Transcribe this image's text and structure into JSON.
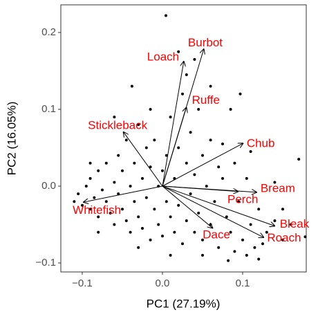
{
  "chart_data": {
    "type": "biplot",
    "x_label": "PC1 (27.19%)",
    "y_label": "PC2 (16.05%)",
    "xlim": [
      -0.1267,
      0.1793
    ],
    "ylim": [
      -0.1117,
      0.236
    ],
    "xticks": [
      {
        "value": -0.1,
        "label": "−0.1"
      },
      {
        "value": 0,
        "label": "0.0"
      },
      0.1
    ],
    "yticks": [
      {
        "value": -0.1,
        "label": "−0.1"
      },
      {
        "value": 0,
        "label": "0.0"
      },
      0.1,
      0.2
    ],
    "grid": false,
    "point_color": "#000000",
    "arrow_color": "#000000",
    "label_color": "#ff0000",
    "points": {
      "x": [
        -0.11,
        -0.105,
        -0.1,
        -0.095,
        -0.09,
        -0.09,
        -0.085,
        -0.08,
        -0.08,
        -0.075,
        -0.07,
        -0.07,
        -0.065,
        -0.06,
        -0.06,
        -0.055,
        -0.055,
        -0.05,
        -0.05,
        -0.045,
        -0.045,
        -0.04,
        -0.04,
        -0.035,
        -0.035,
        -0.03,
        -0.03,
        -0.025,
        -0.025,
        -0.02,
        -0.02,
        -0.015,
        -0.015,
        -0.01,
        -0.01,
        -0.005,
        -0.005,
        0,
        0,
        0.005,
        0.005,
        0.01,
        0.01,
        0.015,
        0.015,
        0.02,
        0.02,
        0.025,
        0.025,
        0.03,
        0.03,
        0.035,
        0.035,
        0.04,
        0.04,
        0.045,
        0.045,
        0.05,
        0.05,
        0.055,
        0.06,
        0.06,
        0.065,
        0.07,
        0.07,
        0.075,
        0.08,
        0.085,
        0.09,
        0.09,
        0.095,
        0.1,
        0.105,
        0.11,
        0.115,
        0.12,
        0.125,
        0.13,
        0.14,
        0.15,
        0.16,
        0.17,
        0.178,
        0.0043,
        0.097,
        -0.038,
        0.082,
        0.085,
        0.04,
        0.02,
        -0.06,
        -0.09,
        -0.08,
        -0.03,
        0.01,
        0.05,
        0.12,
        0.15,
        0.14,
        0.06,
        -0.015,
        0.03,
        0.075,
        0.11,
        0.105
      ],
      "y": [
        -0.02,
        -0.01,
        -0.025,
        0,
        -0.03,
        0.01,
        -0.015,
        0.02,
        -0.04,
        -0.005,
        0.03,
        -0.02,
        -0.035,
        0.005,
        -0.05,
        0.04,
        -0.01,
        -0.03,
        0.02,
        0.06,
        -0.045,
        0,
        -0.06,
        0.03,
        -0.02,
        0.08,
        -0.04,
        0.01,
        -0.055,
        0.05,
        -0.015,
        -0.07,
        0.025,
        -0.03,
        0.06,
        0,
        -0.05,
        0.02,
        -0.065,
        0.04,
        -0.02,
        0.09,
        -0.04,
        0.01,
        -0.06,
        0.05,
        -0.025,
        0.12,
        -0.075,
        0.03,
        -0.045,
        0.07,
        -0.01,
        -0.06,
        0.015,
        0.1,
        -0.035,
        0.04,
        -0.07,
        0,
        -0.05,
        0.06,
        -0.02,
        -0.08,
        0.025,
        0.01,
        -0.04,
        -0.06,
        0.03,
        -0.085,
        -0.02,
        -0.07,
        0.01,
        -0.05,
        -0.08,
        -0.03,
        -0.075,
        -0.06,
        -0.045,
        -0.07,
        -0.05,
        0.035,
        -0.066,
        0.222,
        0.12,
        0.13,
        -0.097,
        0.1,
        0.165,
        0.175,
        0.09,
        0.03,
        -0.06,
        -0.08,
        -0.09,
        -0.09,
        -0.095,
        -0.03,
        0.005,
        0.13,
        0.1,
        0.145,
        0.055,
        0.045,
        -0.09
      ]
    },
    "loadings": [
      {
        "name": "Loach",
        "x": 0.0267,
        "y": 0.163
      },
      {
        "name": "Burbot",
        "x": 0.0517,
        "y": 0.179
      },
      {
        "name": "Ruffe",
        "x": 0.03,
        "y": 0.103
      },
      {
        "name": "Stickleback",
        "x": -0.049,
        "y": 0.071
      },
      {
        "name": "Chub",
        "x": 0.101,
        "y": 0.056
      },
      {
        "name": "Bream",
        "x": 0.118,
        "y": -0.008
      },
      {
        "name": "Perch",
        "x": 0.095,
        "y": -0.007
      },
      {
        "name": "Bleak",
        "x": 0.1405,
        "y": -0.052
      },
      {
        "name": "Roach",
        "x": 0.1267,
        "y": -0.067
      },
      {
        "name": "Dace",
        "x": 0.063,
        "y": -0.055
      },
      {
        "name": "Whitefish",
        "x": -0.099,
        "y": -0.021
      }
    ]
  }
}
